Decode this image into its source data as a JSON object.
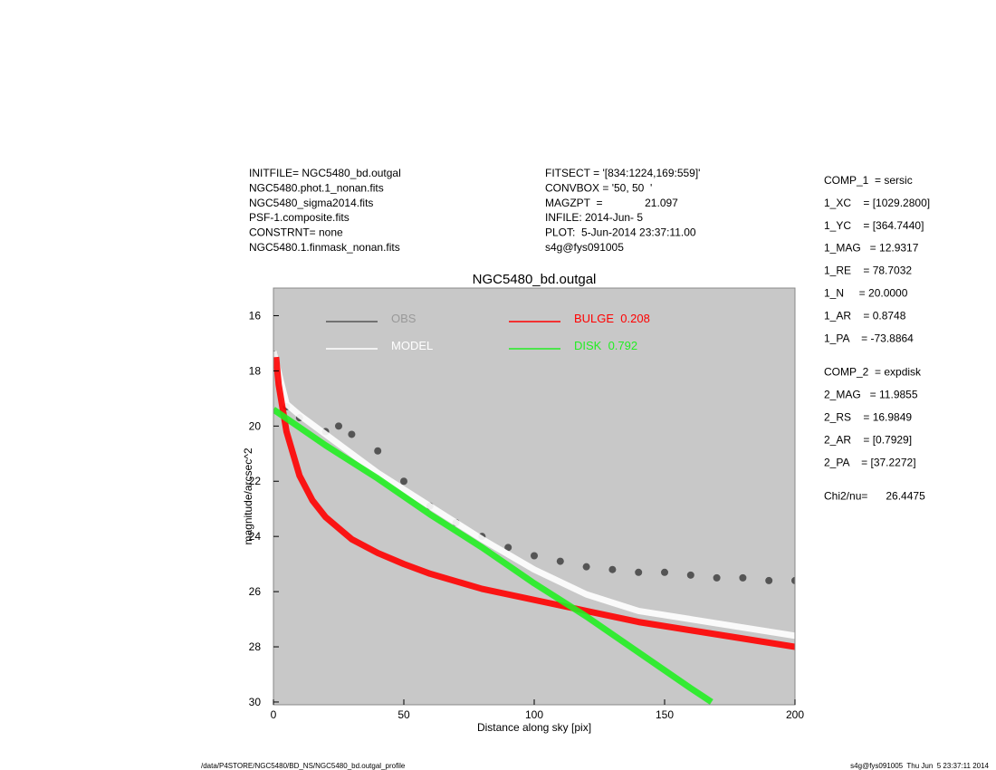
{
  "header": {
    "left": [
      "INITFILE= NGC5480_bd.outgal",
      "NGC5480.phot.1_nonan.fits",
      "NGC5480_sigma2014.fits",
      "PSF-1.composite.fits",
      "CONSTRNT= none",
      "NGC5480.1.finmask_nonan.fits"
    ],
    "middle": [
      "FITSECT = '[834:1224,169:559]'",
      "CONVBOX = '50, 50  '",
      "MAGZPT  =              21.097",
      "INFILE: 2014-Jun- 5",
      "PLOT:  5-Jun-2014 23:37:11.00",
      "s4g@fys091005"
    ],
    "params": [
      [
        "COMP_1  = sersic",
        "1_XC    = [1029.2800]",
        "1_YC    = [364.7440]",
        "1_MAG   = 12.9317",
        "1_RE    = 78.7032",
        "1_N     = 20.0000",
        "1_AR    = 0.8748",
        "1_PA    = -73.8864"
      ],
      [
        "COMP_2  = expdisk",
        "2_MAG   = 11.9855",
        "2_RS    = 16.9849",
        "2_AR    = [0.7929]",
        "2_PA    = [37.2272]"
      ],
      [
        "Chi2/nu=      26.4475"
      ]
    ]
  },
  "footer": {
    "left": "/data/P4STORE/NGC5480/BD_NS/NGC5480_bd.outgal_profile",
    "right": "s4g@fys091005  Thu Jun  5 23:37:11 2014"
  },
  "chart_data": {
    "type": "scatter",
    "title": "NGC5480_bd.outgal",
    "x_label": "Distance along sky [pix]",
    "y_label": "magnitude/arcsec^2",
    "xlim": [
      0,
      200
    ],
    "ylim": [
      15,
      30.1
    ],
    "y_inverted": true,
    "xticks": [
      0,
      50,
      100,
      150,
      200
    ],
    "yticks": [
      16,
      18,
      20,
      22,
      24,
      26,
      28,
      30
    ],
    "background": "#c8c8c8",
    "series": [
      {
        "name": "OBS",
        "color": "#555555",
        "label_color": "#999999",
        "style": "points",
        "x": [
          0,
          5,
          10,
          20,
          25,
          30,
          40,
          50,
          60,
          70,
          80,
          90,
          100,
          110,
          120,
          130,
          140,
          150,
          160,
          170,
          180,
          190,
          200
        ],
        "values": [
          17.4,
          19.3,
          19.7,
          20.2,
          20.0,
          20.3,
          20.9,
          22.0,
          22.9,
          23.5,
          24.0,
          24.4,
          24.7,
          24.9,
          25.1,
          25.2,
          25.3,
          25.3,
          25.4,
          25.5,
          25.5,
          25.6,
          25.6
        ]
      },
      {
        "name": "MODEL",
        "color": "#ffffff",
        "label_color": "#ffffff",
        "style": "band",
        "x": [
          0,
          5,
          10,
          20,
          40,
          60,
          80,
          100,
          120,
          140,
          160,
          180,
          200
        ],
        "values": [
          17.3,
          19.2,
          19.6,
          20.3,
          21.7,
          22.9,
          24.1,
          25.2,
          26.1,
          26.7,
          27.0,
          27.3,
          27.6
        ]
      },
      {
        "name": "BULGE  0.208",
        "color": "#ff0000",
        "label_color": "#ff0000",
        "style": "band",
        "x": [
          1,
          2,
          5,
          10,
          15,
          20,
          30,
          40,
          50,
          60,
          80,
          100,
          120,
          140,
          160,
          180,
          200
        ],
        "values": [
          17.5,
          18.5,
          20.2,
          21.8,
          22.7,
          23.3,
          24.1,
          24.6,
          25.0,
          25.35,
          25.9,
          26.3,
          26.7,
          27.1,
          27.4,
          27.7,
          28.0
        ]
      },
      {
        "name": "DISK  0.792",
        "color": "#22ee22",
        "label_color": "#22ee22",
        "style": "band",
        "x": [
          0,
          20,
          40,
          60,
          80,
          100,
          120,
          140,
          160,
          168
        ],
        "values": [
          19.4,
          20.7,
          21.9,
          23.2,
          24.4,
          25.7,
          26.9,
          28.2,
          29.5,
          30.0
        ]
      }
    ]
  }
}
